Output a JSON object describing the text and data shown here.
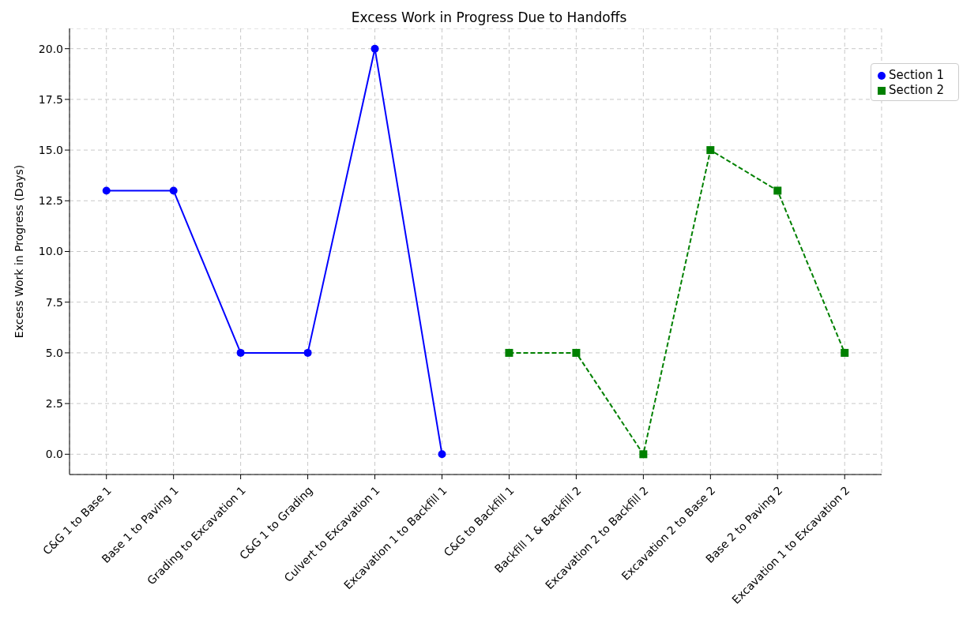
{
  "chart_data": {
    "type": "line",
    "title": "Excess Work in Progress Due to Handoffs",
    "ylabel": "Excess Work in Progress (Days)",
    "categories": [
      "C&G 1 to Base 1",
      "Base 1 to Paving 1",
      "Grading to Excavation 1",
      "C&G 1 to Grading",
      "Culvert to Excavation 1",
      "Excavation 1 to Backfill 1",
      "C&G to Backfill 1",
      "Backfill 1 & Backfill 2",
      "Excavation 2 to Backfill 2",
      "Excavation 2 to Base 2",
      "Base 2 to Paving 2",
      "Excavation 1 to Excavation 2"
    ],
    "series": [
      {
        "name": "Section 1",
        "color": "#0000ff",
        "marker": "circle",
        "line_style": "solid",
        "values": [
          13,
          13,
          5,
          5,
          20,
          0,
          null,
          null,
          null,
          null,
          null,
          null
        ]
      },
      {
        "name": "Section 2",
        "color": "#008000",
        "marker": "square",
        "line_style": "dashed",
        "values": [
          null,
          null,
          null,
          null,
          null,
          null,
          5,
          5,
          0,
          15,
          13,
          5
        ]
      }
    ],
    "ylim": [
      -1,
      21
    ],
    "yticks": [
      {
        "value": 0,
        "label": "0.0"
      },
      {
        "value": 2.5,
        "label": "2.5"
      },
      {
        "value": 5,
        "label": "5.0"
      },
      {
        "value": 7.5,
        "label": "7.5"
      },
      {
        "value": 10,
        "label": "10.0"
      },
      {
        "value": 12.5,
        "label": "12.5"
      },
      {
        "value": 15,
        "label": "15.0"
      },
      {
        "value": 17.5,
        "label": "17.5"
      },
      {
        "value": 20,
        "label": "20.0"
      }
    ],
    "grid": true,
    "legend": "top right"
  }
}
